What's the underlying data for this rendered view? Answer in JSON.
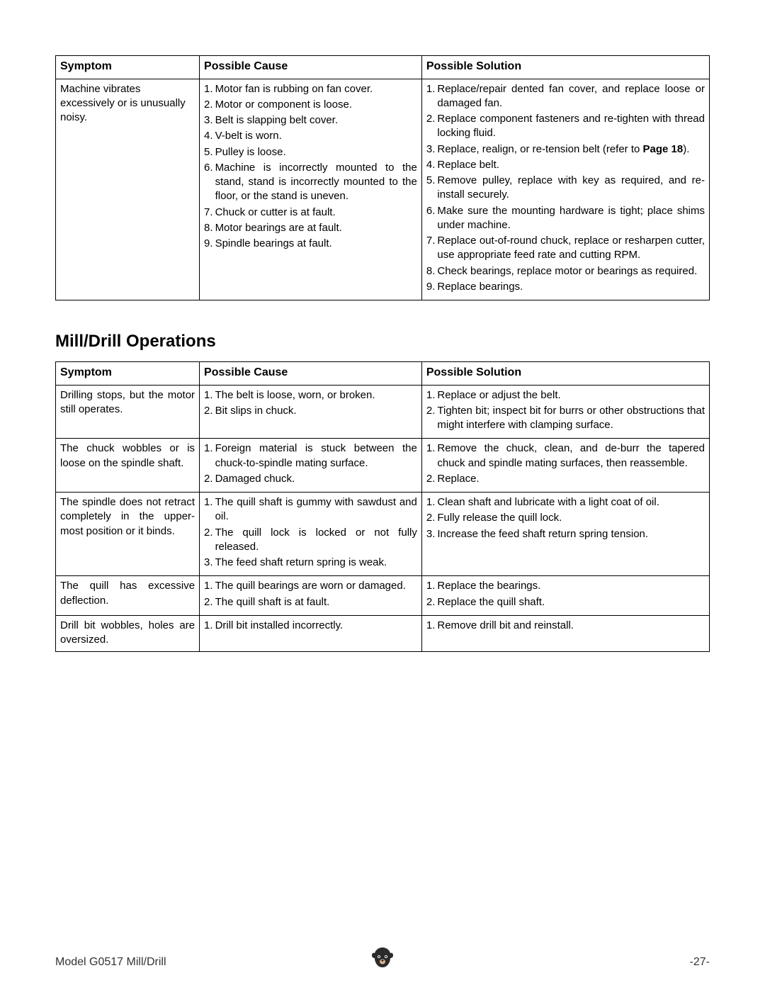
{
  "headers": {
    "symptom": "Symptom",
    "cause": "Possible Cause",
    "solution": "Possible Solution"
  },
  "boldRef": "Page 18",
  "table1": {
    "rows": [
      {
        "symptom": "Machine vibrates excessively or is unusually noisy.",
        "symptom_justify": false,
        "causes": [
          {
            "n": "1.",
            "t": "Motor fan is rubbing on fan cover.",
            "j": false
          },
          {
            "n": "2.",
            "t": "Motor or component is loose.",
            "j": false
          },
          {
            "n": "3.",
            "t": "Belt is slapping belt cover.",
            "j": false
          },
          {
            "n": "4.",
            "t": "V-belt is worn.",
            "j": false
          },
          {
            "n": "5.",
            "t": "Pulley is loose.",
            "j": false
          },
          {
            "n": "6.",
            "t": "Machine is incorrectly mounted to the stand, stand is incorrectly mounted to the floor, or the stand is uneven.",
            "j": true
          },
          {
            "n": "7.",
            "t": "Chuck or cutter is at fault.",
            "j": false
          },
          {
            "n": "8.",
            "t": "Motor bearings are at fault.",
            "j": false
          },
          {
            "n": "9.",
            "t": "Spindle bearings at fault.",
            "j": false
          }
        ],
        "solutions": [
          {
            "n": "1.",
            "t": "Replace/repair dented fan cover, and replace loose or damaged fan.",
            "j": true
          },
          {
            "n": "2.",
            "t": "Replace component fasteners and re-tighten with thread locking fluid.",
            "j": true
          },
          {
            "n": "3.",
            "pre": "Replace, realign, or re-tension belt (refer to ",
            "bold": "Page 18",
            "post": ").",
            "j": true
          },
          {
            "n": "4.",
            "t": "Replace belt.",
            "j": false
          },
          {
            "n": "5.",
            "t": "Remove pulley, replace with key as required, and re-install securely.",
            "j": true
          },
          {
            "n": "6.",
            "t": "Make sure the mounting hardware is tight; place shims under machine.",
            "j": true
          },
          {
            "n": "7.",
            "t": "Replace out-of-round chuck, replace or resharpen cutter, use appropriate feed rate and cutting RPM.",
            "j": true
          },
          {
            "n": "8.",
            "t": "Check bearings, replace motor or bearings as required.",
            "j": true
          },
          {
            "n": "9.",
            "t": "Replace bearings.",
            "j": false
          }
        ]
      }
    ]
  },
  "sectionTitle": "Mill/Drill Operations",
  "table2": {
    "rows": [
      {
        "symptom": "Drilling stops, but the motor still operates.",
        "symptom_justify": true,
        "causes": [
          {
            "n": "1.",
            "t": "The belt is loose, worn, or broken.",
            "j": false
          },
          {
            "n": "2.",
            "t": "Bit slips in chuck.",
            "j": false
          }
        ],
        "solutions": [
          {
            "n": "1.",
            "t": "Replace or adjust the belt.",
            "j": false
          },
          {
            "n": "2.",
            "t": "Tighten bit; inspect bit for burrs or other obstructions that might interfere with clamping surface.",
            "j": true
          }
        ]
      },
      {
        "symptom": "The chuck wobbles or is loose on the spindle shaft.",
        "symptom_justify": true,
        "causes": [
          {
            "n": "1.",
            "t": "Foreign material is stuck between the chuck-to-spindle mating surface.",
            "j": true
          },
          {
            "n": "2.",
            "t": "Damaged chuck.",
            "j": false
          }
        ],
        "solutions": [
          {
            "n": "1.",
            "t": "Remove the chuck, clean, and de-burr the tapered chuck and spindle mating surfaces, then reassemble.",
            "j": true
          },
          {
            "n": "2.",
            "t": "Replace.",
            "j": false
          }
        ]
      },
      {
        "symptom": "The spindle does not retract completely in the upper-most position or it binds.",
        "symptom_justify": true,
        "causes": [
          {
            "n": "1.",
            "t": "The quill shaft is gummy with sawdust and oil.",
            "j": true
          },
          {
            "n": "2.",
            "t": "The quill lock is locked or not fully released.",
            "j": true
          },
          {
            "n": "3.",
            "t": "The feed shaft return spring is weak.",
            "j": false
          }
        ],
        "solutions": [
          {
            "n": "1.",
            "t": "Clean shaft and lubricate with a light coat of oil.",
            "j": false
          },
          {
            "n": "2.",
            "t": "Fully release the quill lock.",
            "j": false
          },
          {
            "n": "3.",
            "t": "Increase the feed shaft return spring tension.",
            "j": false
          }
        ]
      },
      {
        "symptom": "The quill has excessive deflection.",
        "symptom_justify": true,
        "causes": [
          {
            "n": "1.",
            "t": "The quill bearings are worn or damaged.",
            "j": true
          },
          {
            "n": "2.",
            "t": "The quill shaft is at fault.",
            "j": false
          }
        ],
        "solutions": [
          {
            "n": "1.",
            "t": "Replace the bearings.",
            "j": false
          },
          {
            "n": "2.",
            "t": "Replace the quill shaft.",
            "j": false
          }
        ]
      },
      {
        "symptom": "Drill bit wobbles, holes are oversized.",
        "symptom_justify": true,
        "causes": [
          {
            "n": "1.",
            "t": "Drill bit installed incorrectly.",
            "j": false
          }
        ],
        "solutions": [
          {
            "n": "1.",
            "t": "Remove drill bit and reinstall.",
            "j": false
          }
        ]
      }
    ]
  },
  "footer": {
    "left": "Model G0517 Mill/Drill",
    "right": "-27-"
  },
  "colors": {
    "text": "#000000",
    "bg": "#ffffff",
    "border": "#000000"
  }
}
